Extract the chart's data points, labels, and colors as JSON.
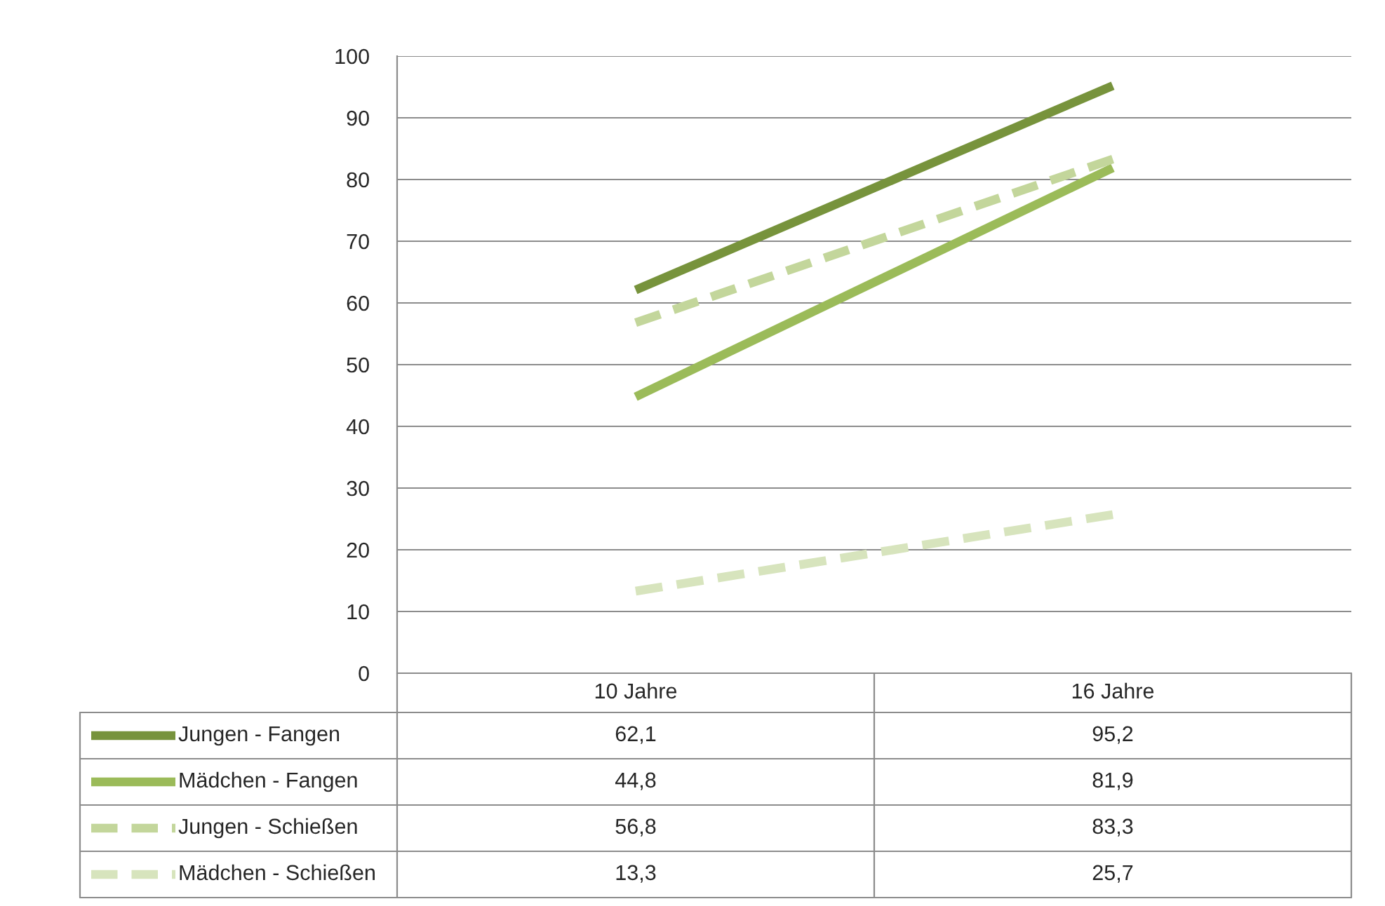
{
  "chart_data": {
    "type": "line",
    "categories": [
      "10 Jahre",
      "16 Jahre"
    ],
    "series": [
      {
        "name": "Jungen - Fangen",
        "color": "#77933c",
        "values": [
          62.1,
          95.2
        ],
        "value_labels": [
          "62,1",
          "95,2"
        ],
        "line_style": "solid"
      },
      {
        "name": "Mädchen - Fangen",
        "color": "#9bbb59",
        "values": [
          44.8,
          81.9
        ],
        "value_labels": [
          "44,8",
          "81,9"
        ],
        "line_style": "solid"
      },
      {
        "name": "Jungen - Schießen",
        "color": "#c3d69b",
        "values": [
          56.8,
          83.3
        ],
        "value_labels": [
          "56,8",
          "83,3"
        ],
        "line_style": "dashed"
      },
      {
        "name": "Mädchen - Schießen",
        "color": "#d7e4bd",
        "values": [
          13.3,
          25.7
        ],
        "value_labels": [
          "13,3",
          "25,7"
        ],
        "line_style": "dashed"
      }
    ],
    "ylim": [
      0,
      100
    ],
    "yticks": [
      0,
      10,
      20,
      30,
      40,
      50,
      60,
      70,
      80,
      90,
      100
    ],
    "grid": "y",
    "legend": "bottom",
    "marker": "none"
  }
}
